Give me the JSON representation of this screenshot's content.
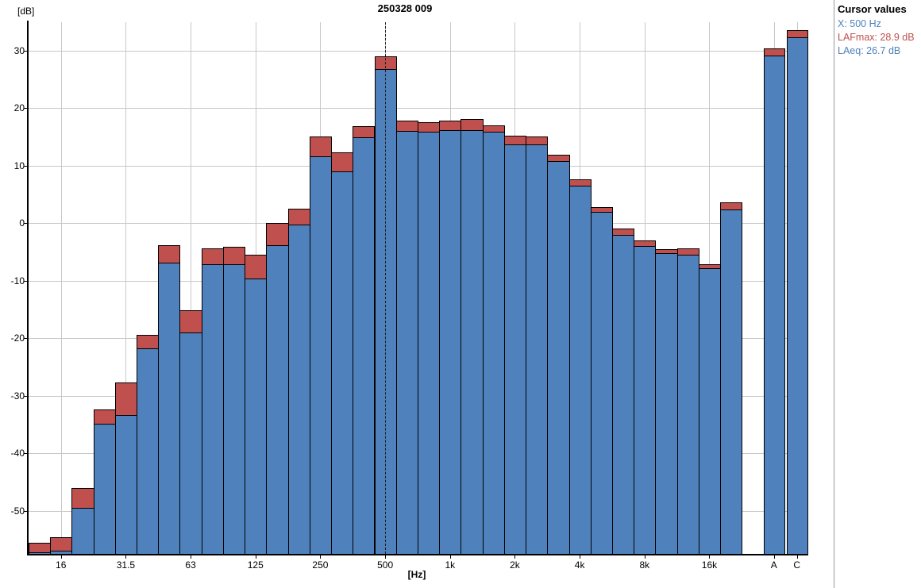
{
  "panel": {
    "title": "Cursor values",
    "x_label": "X: 500 Hz",
    "lafmax_label": "LAFmax: 28.9 dB",
    "laeq_label": "LAeq: 26.7 dB"
  },
  "chart_data": {
    "type": "bar",
    "title": "250328 009",
    "ylabel": "[dB]",
    "xlabel": "[Hz]",
    "ylim": [
      -57.5,
      34.9
    ],
    "yticks": [
      30,
      20,
      10,
      0,
      -10,
      -20,
      -30,
      -40,
      -50
    ],
    "grid": true,
    "legend_position": "none",
    "categories": [
      "12.5",
      "16",
      "20",
      "25",
      "31.5",
      "40",
      "50",
      "63",
      "80",
      "100",
      "125",
      "160",
      "200",
      "250",
      "315",
      "400",
      "500",
      "630",
      "800",
      "1k",
      "1.25k",
      "1.6k",
      "2k",
      "2.5k",
      "3.15k",
      "4k",
      "5k",
      "6.3k",
      "8k",
      "10k",
      "12.5k",
      "16k",
      "20k"
    ],
    "x_tick_indices": [
      1,
      4,
      7,
      10,
      13,
      16,
      19,
      22,
      25,
      28,
      31
    ],
    "broadband_categories": [
      "A",
      "C"
    ],
    "series": [
      {
        "name": "LAFmax",
        "color": "#C0504D",
        "values": [
          -55.6,
          -54.6,
          -46.1,
          -32.4,
          -27.7,
          -19.4,
          -3.9,
          -15.2,
          -4.4,
          -4.2,
          -5.5,
          0.0,
          2.5,
          15.1,
          12.3,
          16.8,
          28.9,
          17.8,
          17.5,
          17.8,
          18.1,
          16.9,
          15.2,
          15.0,
          11.8,
          7.6,
          2.8,
          -1.0,
          -3.1,
          -4.6,
          -4.4,
          -7.2,
          3.6
        ],
        "broadband_values": [
          30.4,
          33.5
        ]
      },
      {
        "name": "LAeq",
        "color": "#4F81BD",
        "values": [
          -57.3,
          -57.0,
          -49.5,
          -34.9,
          -33.4,
          -21.8,
          -6.9,
          -19.0,
          -7.2,
          -7.2,
          -9.7,
          -3.9,
          -0.3,
          11.6,
          9.0,
          14.9,
          26.7,
          16.0,
          15.8,
          16.1,
          16.2,
          15.8,
          13.7,
          13.7,
          10.7,
          6.5,
          1.9,
          -2.1,
          -4.0,
          -5.2,
          -5.5,
          -7.8,
          2.4
        ],
        "broadband_values": [
          29.1,
          32.3
        ]
      }
    ],
    "cursor": {
      "band_index": 16,
      "x_value": "500 Hz",
      "LAFmax_dB": 28.9,
      "LAeq_dB": 26.7
    },
    "colors": {
      "lafmax": "#C0504D",
      "laeq": "#4F81BD",
      "grid": "#C8C8C8",
      "axis": "#000000",
      "cursor_line": "#1A1A1A",
      "panel_divider": "#9A9A9A"
    }
  }
}
